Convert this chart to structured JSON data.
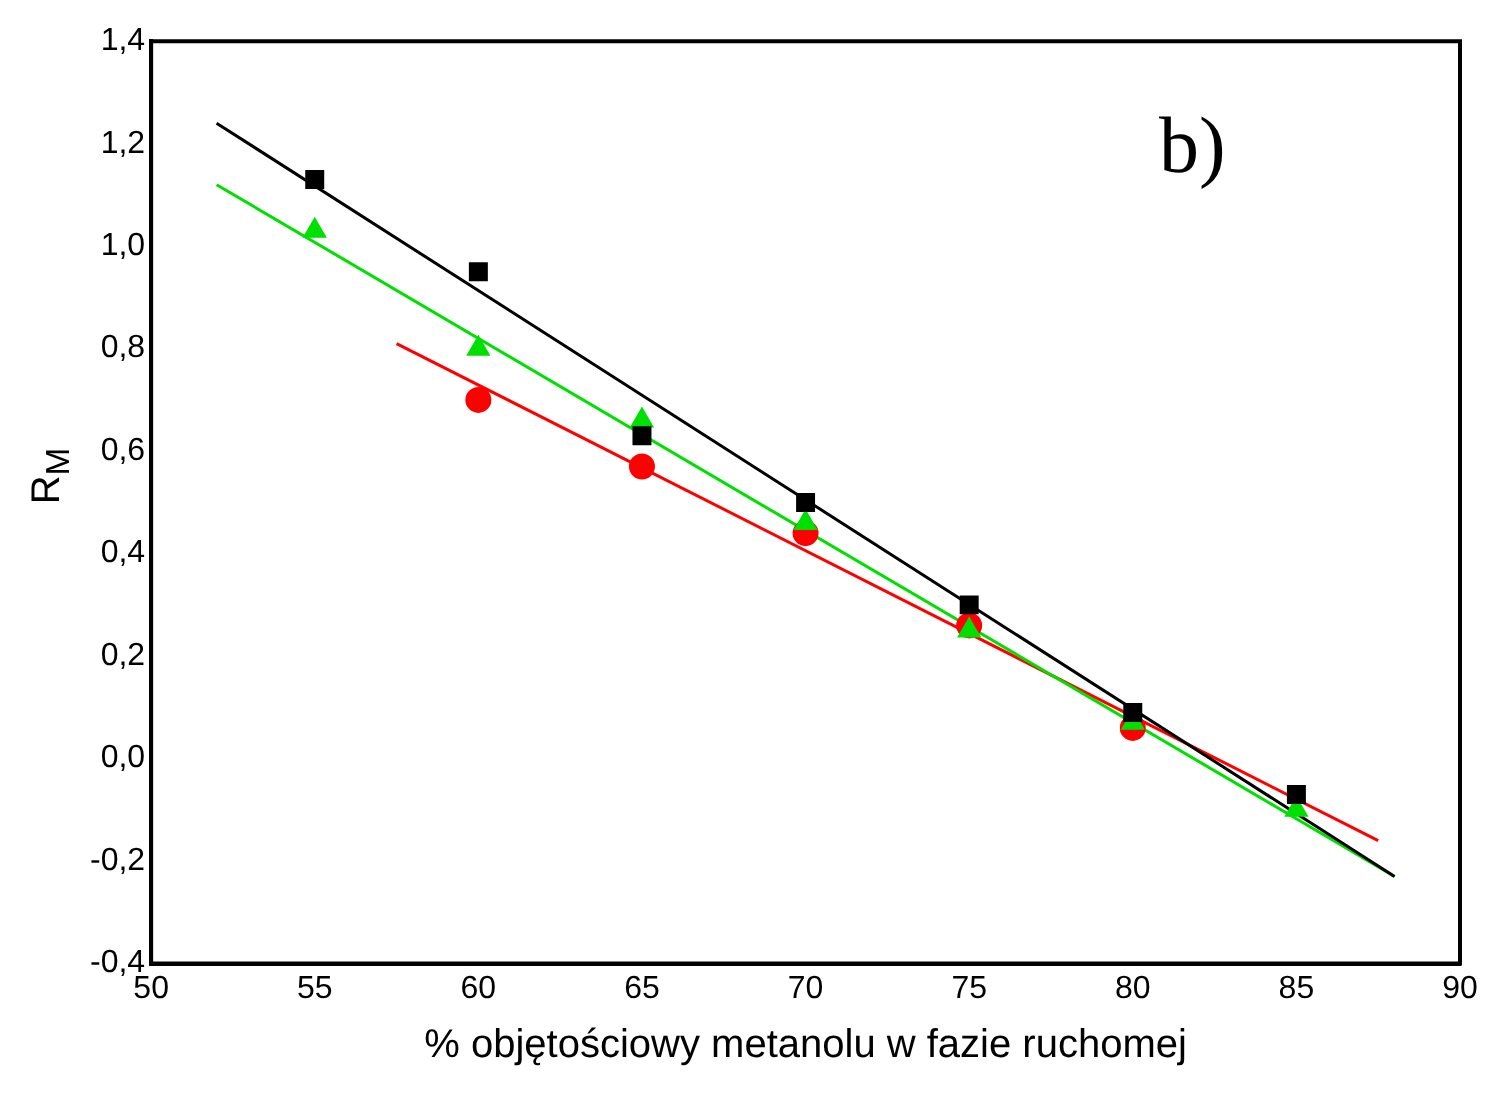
{
  "chart_data": {
    "type": "scatter",
    "xlabel": "% objętościowy metanolu w fazie ruchomej",
    "ylabel": "R$_{M}$",
    "xlim": [
      50,
      90
    ],
    "xticks": [
      50,
      55,
      60,
      65,
      70,
      75,
      80,
      85,
      90
    ],
    "ylim": [
      -0.4,
      1.4
    ],
    "yticks": [
      {
        "value": -0.4,
        "label": "-0,4"
      },
      {
        "value": -0.2,
        "label": "-0,2"
      },
      {
        "value": 0,
        "label": "0,0"
      },
      {
        "value": 0.2,
        "label": "0,2"
      },
      {
        "value": 0.4,
        "label": "0,4"
      },
      {
        "value": 0.6,
        "label": "0,6"
      },
      {
        "value": 0.8,
        "label": "0,8"
      },
      {
        "value": 1.0,
        "label": "1,0"
      },
      {
        "value": 1.2,
        "label": "1,2"
      },
      {
        "value": 1.4,
        "label": "1,4"
      }
    ],
    "grid": false,
    "legend": false,
    "annotations": [
      "b)"
    ],
    "series": [
      {
        "type": "scatter",
        "marker": "square",
        "color": "#000000",
        "x": [
          55,
          60,
          65,
          70,
          75,
          80,
          85
        ],
        "values": [
          1.13,
          0.95,
          0.63,
          0.5,
          0.3,
          0.09,
          -0.07
        ]
      },
      {
        "type": "scatter",
        "marker": "triangle",
        "color": "#00e000",
        "x": [
          55,
          60,
          65,
          70,
          75,
          80,
          85
        ],
        "values": [
          1.03,
          0.8,
          0.66,
          0.46,
          0.25,
          0.07,
          -0.1
        ]
      },
      {
        "type": "scatter",
        "marker": "circle",
        "color": "#ff0000",
        "x": [
          60,
          65,
          70,
          75,
          80
        ],
        "values": [
          0.7,
          0.57,
          0.44,
          0.26,
          0.06
        ]
      },
      {
        "type": "line",
        "marker": "none",
        "color": "#000000",
        "x": [
          52,
          88
        ],
        "values": [
          1.24,
          -0.23
        ]
      },
      {
        "type": "line",
        "marker": "none",
        "color": "#00e000",
        "x": [
          52,
          88
        ],
        "values": [
          1.12,
          -0.23
        ]
      },
      {
        "type": "line",
        "marker": "none",
        "color": "#ff0000",
        "x": [
          57.5,
          87.5
        ],
        "values": [
          0.81,
          -0.16
        ]
      }
    ]
  }
}
